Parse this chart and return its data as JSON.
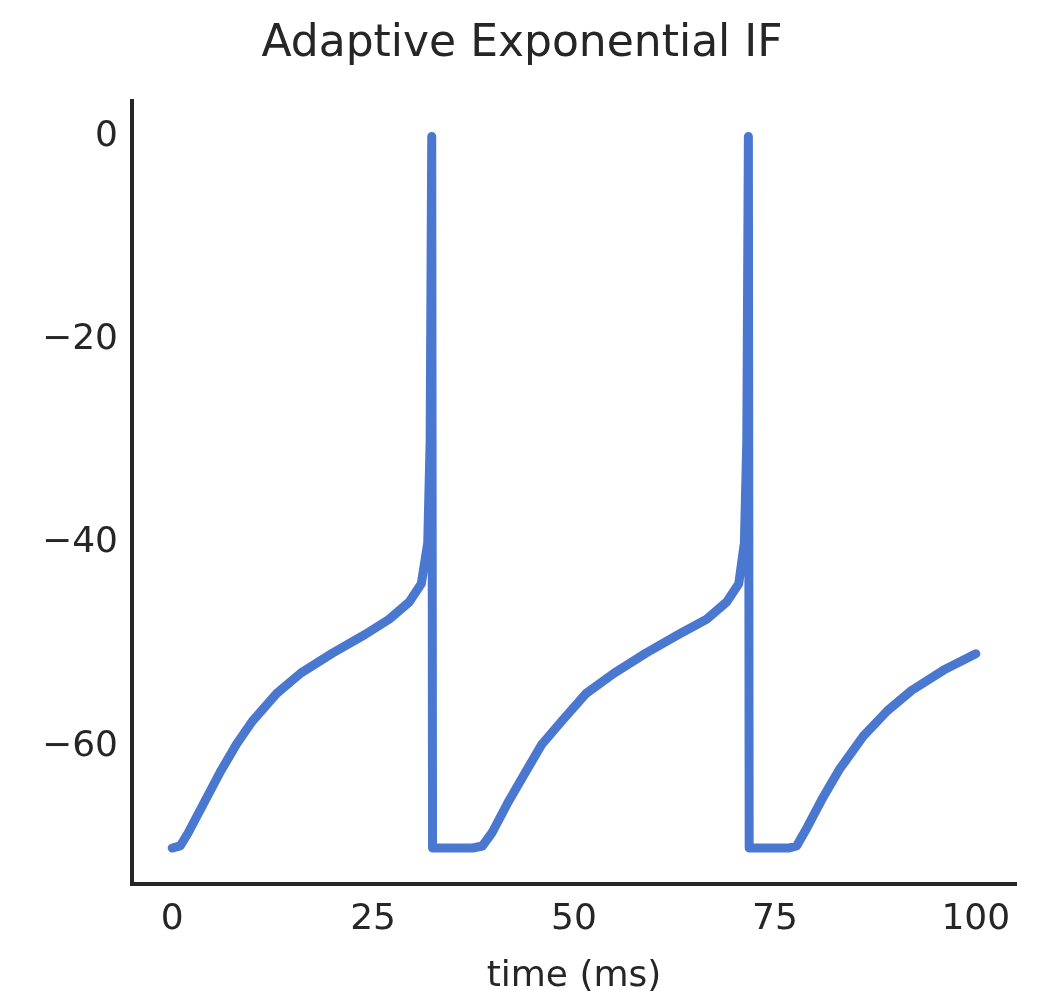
{
  "chart_data": {
    "type": "line",
    "title": "Adaptive Exponential IF",
    "xlabel": "time (ms)",
    "x": [
      0,
      1,
      2,
      4,
      6,
      8,
      10,
      13,
      16,
      20,
      24,
      27,
      29.5,
      31,
      31.8,
      32.1,
      32.3,
      32.4,
      37.4,
      38.6,
      39.8,
      41.8,
      44,
      46,
      48.5,
      51.5,
      55,
      59,
      63,
      66.5,
      69,
      70.5,
      71.2,
      71.5,
      71.7,
      71.8,
      76.7,
      77.7,
      79,
      81,
      83,
      86,
      89,
      92,
      96,
      100
    ],
    "series": [
      {
        "color": "#4a78d0",
        "values": [
          -70,
          -69.8,
          -68.5,
          -65.5,
          -62.5,
          -59.8,
          -57.5,
          -54.8,
          -52.8,
          -50.8,
          -49,
          -47.5,
          -45.8,
          -44,
          -40,
          -30,
          0,
          -70,
          -70,
          -69.8,
          -68.5,
          -65.5,
          -62.5,
          -59.8,
          -57.5,
          -54.8,
          -52.8,
          -50.8,
          -49,
          -47.5,
          -45.8,
          -44,
          -40,
          -30,
          0,
          -70,
          -70,
          -69.8,
          -68,
          -65,
          -62.3,
          -59,
          -56.5,
          -54.5,
          -52.5,
          -50.9
        ]
      }
    ],
    "xlim": [
      -5,
      105
    ],
    "xticks": [
      0,
      25,
      50,
      75,
      100
    ],
    "ylim": [
      -73.5,
      3.5
    ],
    "yticks": [
      {
        "value": 0,
        "label": "0"
      },
      {
        "value": -20,
        "label": "−20"
      },
      {
        "value": -40,
        "label": "−40"
      },
      {
        "value": -60,
        "label": "−60"
      }
    ],
    "grid": false,
    "legend": false,
    "marker": "none",
    "line_style": "solid"
  }
}
